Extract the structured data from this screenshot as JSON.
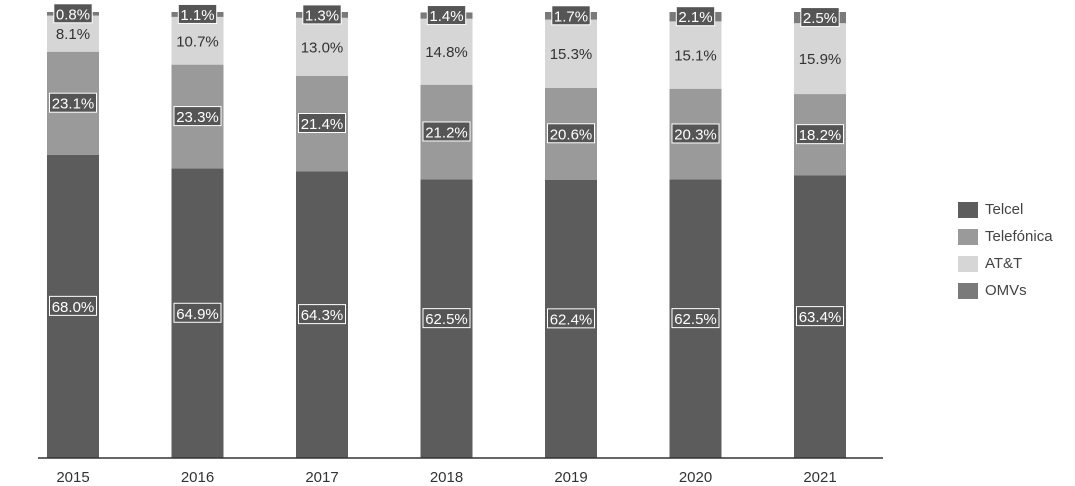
{
  "chart_data": {
    "type": "bar",
    "stacked": true,
    "categories": [
      "2015",
      "2016",
      "2017",
      "2018",
      "2019",
      "2020",
      "2021"
    ],
    "series": [
      {
        "name": "Telcel",
        "values": [
          68.0,
          64.9,
          64.3,
          62.5,
          62.4,
          62.5,
          63.4
        ],
        "labels": [
          "68.0%",
          "64.9%",
          "64.3%",
          "62.5%",
          "62.4%",
          "62.5%",
          "63.4%"
        ],
        "color": "#5c5c5c"
      },
      {
        "name": "Telefónica",
        "values": [
          23.1,
          23.3,
          21.4,
          21.2,
          20.6,
          20.3,
          18.2
        ],
        "labels": [
          "23.1%",
          "23.3%",
          "21.4%",
          "21.2%",
          "20.6%",
          "20.3%",
          "18.2%"
        ],
        "color": "#9a9a9a"
      },
      {
        "name": "AT&T",
        "values": [
          8.1,
          10.7,
          13.0,
          14.8,
          15.3,
          15.1,
          15.9
        ],
        "labels": [
          "8.1%",
          "10.7%",
          "13.0%",
          "14.8%",
          "15.3%",
          "15.1%",
          "15.9%"
        ],
        "color": "#d6d6d6"
      },
      {
        "name": "OMVs",
        "values": [
          0.8,
          1.1,
          1.3,
          1.4,
          1.7,
          2.1,
          2.5
        ],
        "labels": [
          "0.8%",
          "1.1%",
          "1.3%",
          "1.4%",
          "1.7%",
          "2.1%",
          "2.5%"
        ],
        "color": "#7a7a7a"
      }
    ],
    "ylim": [
      0,
      100
    ],
    "grid": false,
    "legend_position": "right",
    "legend_order": [
      "Telcel",
      "Telefónica",
      "AT&T",
      "OMVs"
    ]
  }
}
